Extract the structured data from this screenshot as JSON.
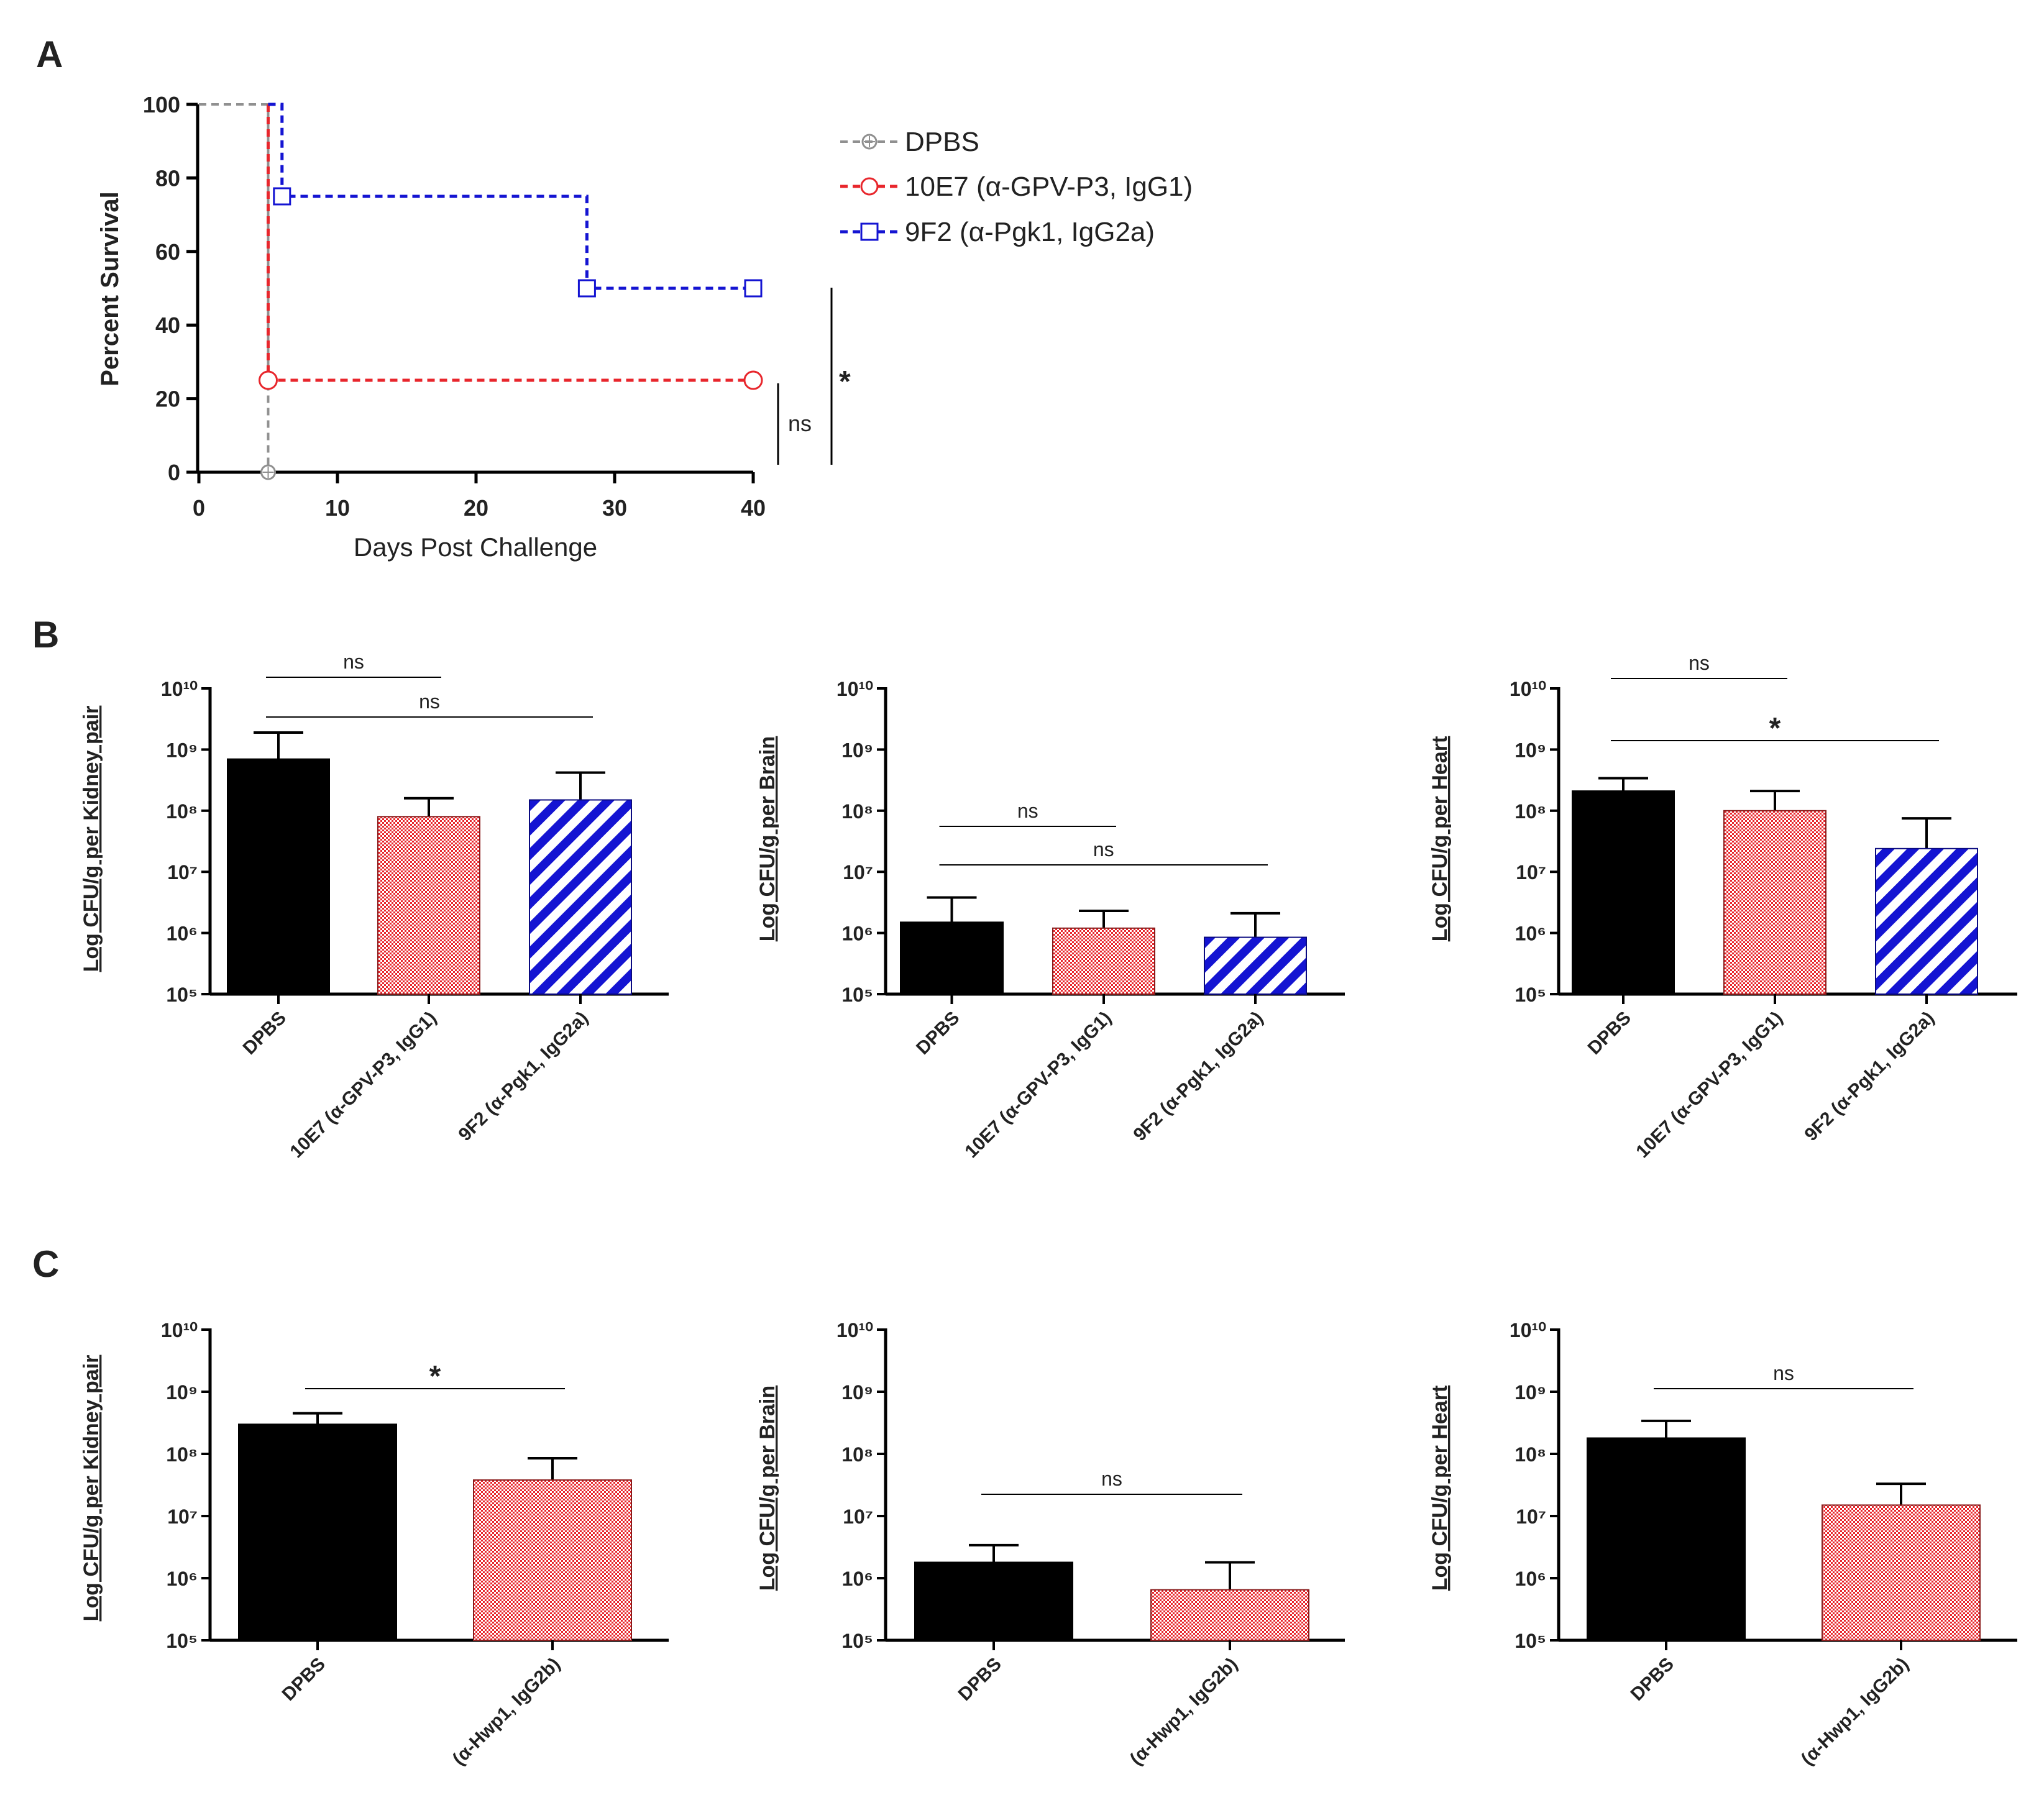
{
  "panel_labels": [
    "A",
    "B",
    "C"
  ],
  "colors": {
    "black": "#000000",
    "red": "#e8262c",
    "blue": "#1414d2",
    "grey": "#909090"
  },
  "chart_data": [
    {
      "id": "A",
      "type": "line",
      "title": "",
      "xlabel": "Days Post Challenge",
      "ylabel": "Percent Survival",
      "xlim": [
        0,
        40
      ],
      "ylim": [
        0,
        100
      ],
      "xticks": [
        "0",
        "10",
        "20",
        "30",
        "40"
      ],
      "yticks": [
        "0",
        "20",
        "40",
        "60",
        "80",
        "100"
      ],
      "series": [
        {
          "name": "DPBS",
          "color": "#909090",
          "marker": "circle-star",
          "points": [
            [
              0,
              100
            ],
            [
              5,
              100
            ],
            [
              5,
              0
            ]
          ],
          "markers": [
            [
              5,
              0
            ]
          ]
        },
        {
          "name": "10E7 (α-GPV-P3, IgG1)",
          "color": "#e8262c",
          "marker": "circle",
          "points": [
            [
              5,
              100
            ],
            [
              5,
              25
            ],
            [
              40,
              25
            ]
          ],
          "markers": [
            [
              5,
              25
            ],
            [
              40,
              25
            ]
          ]
        },
        {
          "name": "9F2 (α-Pgk1, IgG2a)",
          "color": "#1414d2",
          "marker": "square",
          "points": [
            [
              5,
              100
            ],
            [
              6,
              100
            ],
            [
              6,
              75
            ],
            [
              28,
              75
            ],
            [
              28,
              50
            ],
            [
              40,
              50
            ]
          ],
          "markers": [
            [
              6,
              75
            ],
            [
              28,
              50
            ],
            [
              40,
              50
            ]
          ]
        }
      ],
      "comparisons": [
        {
          "label": "ns",
          "between": [
            "10E7 (α-GPV-P3, IgG1)",
            "DPBS"
          ]
        },
        {
          "label": "*",
          "between": [
            "9F2 (α-Pgk1, IgG2a)",
            "DPBS"
          ]
        }
      ]
    },
    {
      "id": "B1",
      "type": "bar",
      "scale": "log",
      "ylabel": "Log CFU/g per Kidney pair",
      "categories": [
        "DPBS",
        "10E7 (α-GPV-P3, IgG1)",
        "9F2 (α-Pgk1, IgG2a)"
      ],
      "values": [
        700000000,
        80000000,
        150000000
      ],
      "errors_upper": [
        1900000000,
        160000000,
        420000000
      ],
      "ylim": [
        100000,
        10000000000
      ],
      "yticks": [
        "10^5",
        "10^6",
        "10^7",
        "10^8",
        "10^9",
        "10^10"
      ],
      "comparisons": [
        {
          "label": "ns",
          "from": 0,
          "to": 1
        },
        {
          "label": "ns",
          "from": 0,
          "to": 2
        }
      ]
    },
    {
      "id": "B2",
      "type": "bar",
      "scale": "log",
      "ylabel": "Log CFU/g per Brain",
      "categories": [
        "DPBS",
        "10E7 (α-GPV-P3, IgG1)",
        "9F2 (α-Pgk1, IgG2a)"
      ],
      "values": [
        1500000,
        1200000,
        850000
      ],
      "errors_upper": [
        3800000,
        2300000,
        2100000
      ],
      "ylim": [
        100000,
        10000000000
      ],
      "yticks": [
        "10^5",
        "10^6",
        "10^7",
        "10^8",
        "10^9",
        "10^10"
      ],
      "comparisons": [
        {
          "label": "ns",
          "from": 0,
          "to": 1
        },
        {
          "label": "ns",
          "from": 0,
          "to": 2
        }
      ]
    },
    {
      "id": "B3",
      "type": "bar",
      "scale": "log",
      "ylabel": "Log CFU/g per Heart",
      "categories": [
        "DPBS",
        "10E7 (α-GPV-P3, IgG1)",
        "9F2 (α-Pgk1, IgG2a)"
      ],
      "values": [
        210000000,
        100000000,
        24000000
      ],
      "errors_upper": [
        340000000,
        210000000,
        75000000
      ],
      "ylim": [
        100000,
        10000000000
      ],
      "yticks": [
        "10^5",
        "10^6",
        "10^7",
        "10^8",
        "10^9",
        "10^10"
      ],
      "comparisons": [
        {
          "label": "ns",
          "from": 0,
          "to": 1
        },
        {
          "label": "*",
          "from": 0,
          "to": 2
        }
      ]
    },
    {
      "id": "C1",
      "type": "bar",
      "scale": "log",
      "ylabel": "Log CFU/g per Kidney pair",
      "categories": [
        "DPBS",
        "(α-Hwp1, IgG2b)"
      ],
      "values": [
        300000000,
        38000000
      ],
      "errors_upper": [
        450000000,
        85000000
      ],
      "ylim": [
        100000,
        10000000000
      ],
      "yticks": [
        "10^5",
        "10^6",
        "10^7",
        "10^8",
        "10^9",
        "10^10"
      ],
      "comparisons": [
        {
          "label": "*",
          "from": 0,
          "to": 1
        }
      ]
    },
    {
      "id": "C2",
      "type": "bar",
      "scale": "log",
      "ylabel": "Log CFU/g per Brain",
      "categories": [
        "DPBS",
        "(α-Hwp1, IgG2b)"
      ],
      "values": [
        1800000,
        650000
      ],
      "errors_upper": [
        3400000,
        1800000
      ],
      "ylim": [
        100000,
        10000000000
      ],
      "yticks": [
        "10^5",
        "10^6",
        "10^7",
        "10^8",
        "10^9",
        "10^10"
      ],
      "comparisons": [
        {
          "label": "ns",
          "from": 0,
          "to": 1
        }
      ]
    },
    {
      "id": "C3",
      "type": "bar",
      "scale": "log",
      "ylabel": "Log CFU/g per Heart",
      "categories": [
        "DPBS",
        "(α-Hwp1, IgG2b)"
      ],
      "values": [
        180000000,
        15000000
      ],
      "errors_upper": [
        340000000,
        33000000
      ],
      "ylim": [
        100000,
        10000000000
      ],
      "yticks": [
        "10^5",
        "10^6",
        "10^7",
        "10^8",
        "10^9",
        "10^10"
      ],
      "comparisons": [
        {
          "label": "ns",
          "from": 0,
          "to": 1
        }
      ]
    }
  ]
}
